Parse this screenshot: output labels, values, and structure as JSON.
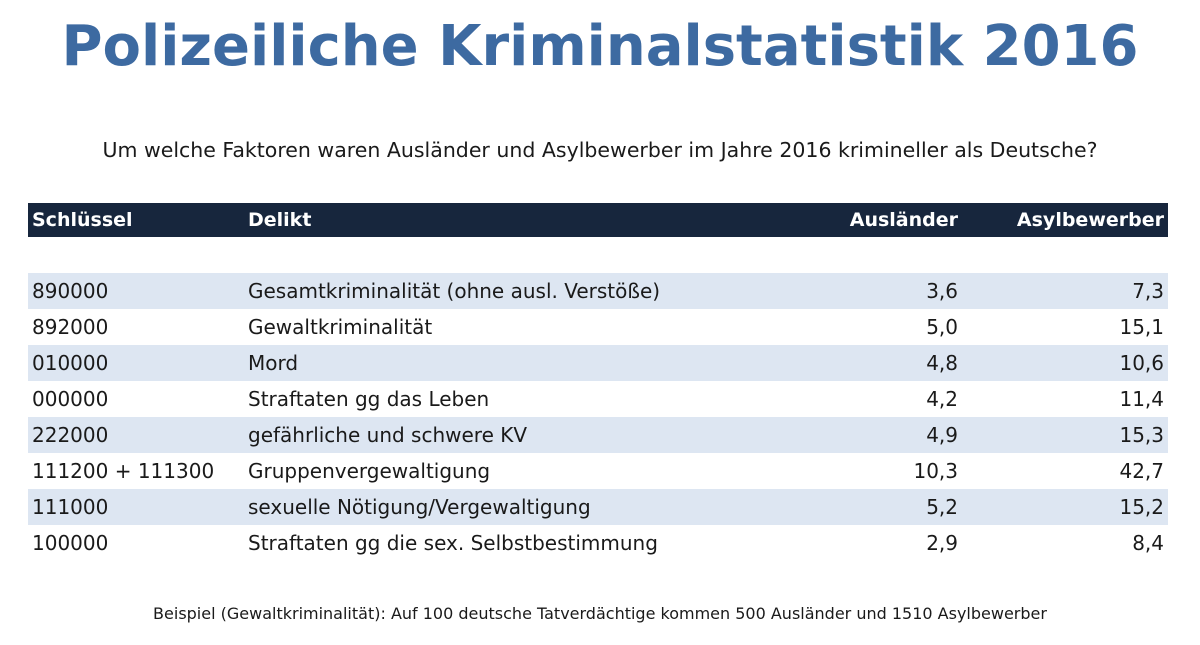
{
  "title": "Polizeiliche Kriminalstatistik 2016",
  "subtitle": "Um welche Faktoren waren Ausländer und Asylbewerber im Jahre 2016 krimineller als Deutsche?",
  "footnote": "Beispiel (Gewaltkriminalität): Auf 100 deutsche Tatverdächtige kommen 500 Ausländer und 1510 Asylbewerber",
  "colors": {
    "title": "#3d6aa1",
    "header_bg": "#17263d",
    "band": "#dde6f2"
  },
  "chart_data": {
    "type": "table",
    "columns": [
      "Schlüssel",
      "Delikt",
      "Ausländer",
      "Asylbewerber"
    ],
    "rows": [
      [
        "890000",
        "Gesamtkriminalität (ohne ausl. Verstöße)",
        "3,6",
        "7,3"
      ],
      [
        "892000",
        "Gewaltkriminalität",
        "5,0",
        "15,1"
      ],
      [
        "010000",
        "Mord",
        "4,8",
        "10,6"
      ],
      [
        "000000",
        "Straftaten gg das Leben",
        "4,2",
        "11,4"
      ],
      [
        "222000",
        "gefährliche und schwere KV",
        "4,9",
        "15,3"
      ],
      [
        "111200 + 111300",
        "Gruppenvergewaltigung",
        "10,3",
        "42,7"
      ],
      [
        "111000",
        "sexuelle Nötigung/Vergewaltigung",
        "5,2",
        "15,2"
      ],
      [
        "100000",
        "Straftaten gg die sex. Selbstbestimmung",
        "2,9",
        "8,4"
      ]
    ]
  }
}
